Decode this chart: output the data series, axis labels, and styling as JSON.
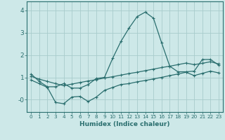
{
  "title": "",
  "xlabel": "Humidex (Indice chaleur)",
  "ylabel": "",
  "background_color": "#cde8e8",
  "grid_color": "#a8cccc",
  "line_color": "#2a6e6e",
  "xlim": [
    -0.5,
    23.5
  ],
  "ylim": [
    -0.55,
    4.4
  ],
  "xticks": [
    0,
    1,
    2,
    3,
    4,
    5,
    6,
    7,
    8,
    9,
    10,
    11,
    12,
    13,
    14,
    15,
    16,
    17,
    18,
    19,
    20,
    21,
    22,
    23
  ],
  "yticks": [
    0,
    1,
    2,
    3,
    4
  ],
  "ytick_labels": [
    "-0",
    "1",
    "2",
    "3",
    "4"
  ],
  "line1_x": [
    0,
    1,
    2,
    3,
    4,
    5,
    6,
    7,
    8,
    9,
    10,
    11,
    12,
    13,
    14,
    15,
    16,
    17,
    18,
    19,
    20,
    21,
    22,
    23
  ],
  "line1_y": [
    1.15,
    0.82,
    0.58,
    0.58,
    0.72,
    0.52,
    0.52,
    0.68,
    0.95,
    1.0,
    1.85,
    2.6,
    3.2,
    3.72,
    3.92,
    3.65,
    2.55,
    1.5,
    1.25,
    1.25,
    1.28,
    1.8,
    1.8,
    1.55
  ],
  "line2_x": [
    0,
    1,
    2,
    3,
    4,
    5,
    6,
    7,
    8,
    9,
    10,
    11,
    12,
    13,
    14,
    15,
    16,
    17,
    18,
    19,
    20,
    21,
    22,
    23
  ],
  "line2_y": [
    1.05,
    0.92,
    0.82,
    0.72,
    0.63,
    0.7,
    0.77,
    0.84,
    0.9,
    0.97,
    1.03,
    1.1,
    1.17,
    1.23,
    1.3,
    1.37,
    1.44,
    1.5,
    1.57,
    1.64,
    1.57,
    1.63,
    1.7,
    1.6
  ],
  "line3_x": [
    0,
    1,
    2,
    3,
    4,
    5,
    6,
    7,
    8,
    9,
    10,
    11,
    12,
    13,
    14,
    15,
    16,
    17,
    18,
    19,
    20,
    21,
    22,
    23
  ],
  "line3_y": [
    0.88,
    0.72,
    0.55,
    -0.12,
    -0.18,
    0.12,
    0.15,
    -0.08,
    0.12,
    0.42,
    0.55,
    0.68,
    0.72,
    0.8,
    0.86,
    0.93,
    1.0,
    1.08,
    1.15,
    1.23,
    1.08,
    1.18,
    1.28,
    1.2
  ]
}
